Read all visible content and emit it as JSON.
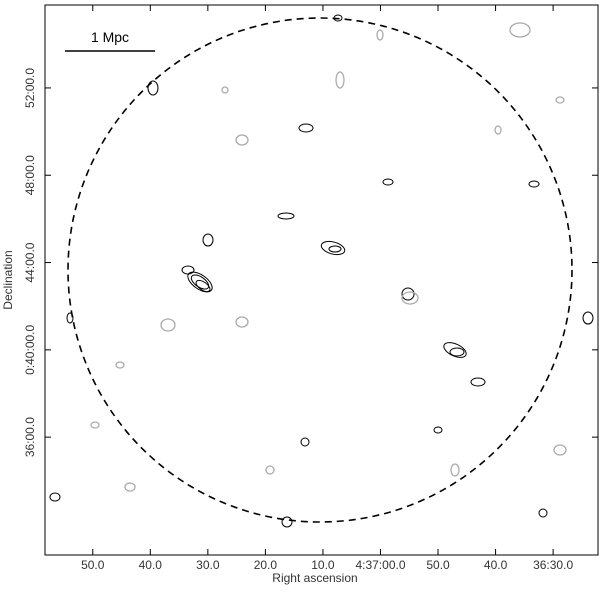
{
  "chart_data": {
    "type": "contour",
    "xlabel": "Right ascension",
    "ylabel": "Declination",
    "scale_bar_label": "1 Mpc",
    "xlim": [
      118.3,
      22.2
    ],
    "xticks": [
      {
        "value": 110,
        "label": "50.0"
      },
      {
        "value": 100,
        "label": "40.0"
      },
      {
        "value": 90,
        "label": "30.0"
      },
      {
        "value": 80,
        "label": "20.0"
      },
      {
        "value": 70,
        "label": "10.0"
      },
      {
        "value": 60,
        "label": "4:37:00.0"
      },
      {
        "value": 50,
        "label": "50.0"
      },
      {
        "value": 40,
        "label": "40.0"
      },
      {
        "value": 30,
        "label": "36:30.0"
      }
    ],
    "ylim": [
      30.6,
      55.8
    ],
    "yticks": [
      {
        "value": 36,
        "label": "36:00.0"
      },
      {
        "value": 40,
        "label": "0:40:00.0"
      },
      {
        "value": 44,
        "label": "44:00.0"
      },
      {
        "value": 48,
        "label": "48:00.0"
      },
      {
        "value": 52,
        "label": "52:00.0"
      }
    ]
  }
}
